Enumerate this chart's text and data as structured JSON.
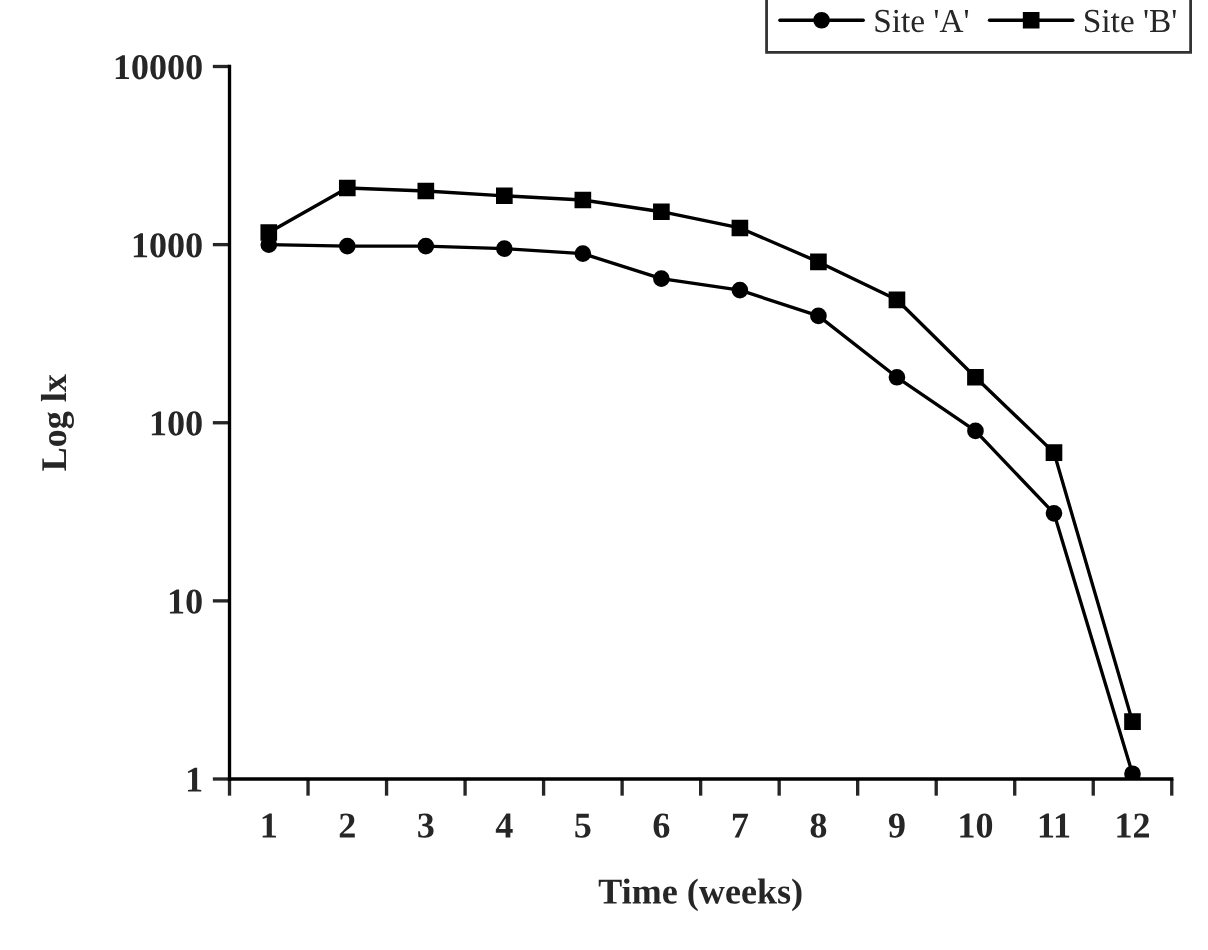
{
  "chart_data": {
    "type": "line",
    "xlabel": "Time (weeks)",
    "ylabel": "Log lx",
    "categories": [
      "1",
      "2",
      "3",
      "4",
      "5",
      "6",
      "7",
      "8",
      "9",
      "10",
      "11",
      "12"
    ],
    "series": [
      {
        "name": "Site 'A'",
        "color": "#000000",
        "marker": "circle",
        "values": [
          1000,
          980,
          980,
          950,
          890,
          645,
          555,
          398,
          180,
          90,
          31,
          1.07
        ]
      },
      {
        "name": "Site 'B'",
        "color": "#000000",
        "marker": "square",
        "values": [
          1170,
          2080,
          2000,
          1880,
          1780,
          1530,
          1240,
          800,
          490,
          180,
          68,
          2.1
        ]
      }
    ],
    "log": "y",
    "ylim": [
      1,
      10000
    ],
    "yticks": [
      1,
      10,
      100,
      1000,
      10000
    ],
    "grid": false,
    "legend": "top right",
    "line_style": "solid"
  }
}
